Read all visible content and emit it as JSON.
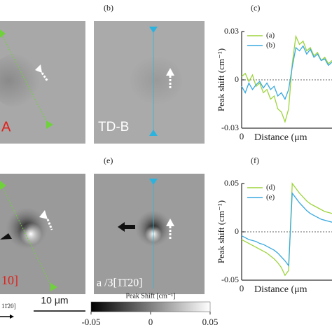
{
  "panels": {
    "b": "(b)",
    "c": "(c)",
    "e": "(e)",
    "f": "(f)"
  },
  "images": {
    "a_label": "A",
    "b_label": "TD-B",
    "d_label": "10]",
    "e_label": "a /3[1̄1̄20]",
    "d_arrow_label": "11̄20]"
  },
  "scale_bar": "10 μm",
  "colorbar": {
    "label": "Peak Shift [cm⁻¹]",
    "ticks": [
      -0.05,
      0,
      0.05
    ],
    "lim": [
      -0.05,
      0.05
    ]
  },
  "chart_data": [
    {
      "type": "line",
      "ylabel": "Peak shift (cm⁻¹)",
      "xlabel": "Distance (μm",
      "x": [
        0,
        1,
        2,
        3,
        4,
        5,
        6,
        7,
        8,
        9,
        10,
        11,
        12,
        13,
        14,
        15,
        16,
        17,
        18,
        19,
        20,
        21,
        22,
        23,
        24,
        25
      ],
      "xlim": [
        0,
        25
      ],
      "xticks": [
        0
      ],
      "ylim": [
        -0.03,
        0.03
      ],
      "yticks": [
        -0.03,
        0,
        0.03
      ],
      "zero_line": true,
      "legend": "top-right",
      "series": [
        {
          "name": "(a)",
          "color": "#9dd43c",
          "values": [
            0.002,
            0.004,
            -0.001,
            0.003,
            -0.004,
            -0.002,
            -0.008,
            -0.006,
            -0.012,
            -0.01,
            -0.018,
            -0.02,
            -0.026,
            -0.018,
            0.01,
            0.027,
            0.022,
            0.024,
            0.018,
            0.02,
            0.015,
            0.017,
            0.012,
            0.014,
            0.01,
            0.012
          ]
        },
        {
          "name": "(b)",
          "color": "#3aa9df",
          "values": [
            -0.004,
            -0.008,
            -0.002,
            -0.006,
            -0.003,
            -0.001,
            -0.005,
            -0.002,
            -0.006,
            -0.004,
            -0.01,
            -0.008,
            -0.012,
            -0.006,
            0.008,
            0.02,
            0.018,
            0.021,
            0.016,
            0.019,
            0.014,
            0.016,
            0.012,
            0.013,
            0.009,
            0.011
          ]
        }
      ]
    },
    {
      "type": "line",
      "ylabel": "Peak shift (cm⁻¹)",
      "xlabel": "Distance (μm",
      "x": [
        0,
        1,
        2,
        3,
        4,
        5,
        6,
        7,
        8,
        9,
        10,
        11,
        12,
        13,
        14,
        15,
        16,
        17,
        18,
        19,
        20,
        21,
        22,
        23,
        24,
        25
      ],
      "xlim": [
        0,
        25
      ],
      "xticks": [
        0
      ],
      "ylim": [
        -0.05,
        0.05
      ],
      "yticks": [
        -0.05,
        0,
        0.05
      ],
      "zero_line": true,
      "legend": "top-right",
      "series": [
        {
          "name": "(d)",
          "color": "#9dd43c",
          "values": [
            -0.008,
            -0.01,
            -0.012,
            -0.014,
            -0.016,
            -0.018,
            -0.02,
            -0.022,
            -0.025,
            -0.028,
            -0.032,
            -0.037,
            -0.045,
            -0.04,
            0.05,
            0.045,
            0.04,
            0.036,
            0.032,
            0.029,
            0.027,
            0.025,
            0.023,
            0.021,
            0.02,
            0.019
          ]
        },
        {
          "name": "(e)",
          "color": "#3aa9df",
          "values": [
            -0.004,
            -0.006,
            -0.008,
            -0.009,
            -0.01,
            -0.012,
            -0.013,
            -0.015,
            -0.017,
            -0.019,
            -0.022,
            -0.026,
            -0.03,
            -0.035,
            0.04,
            0.035,
            0.03,
            0.026,
            0.022,
            0.019,
            0.017,
            0.015,
            0.013,
            0.012,
            0.011,
            0.01
          ]
        }
      ]
    }
  ]
}
